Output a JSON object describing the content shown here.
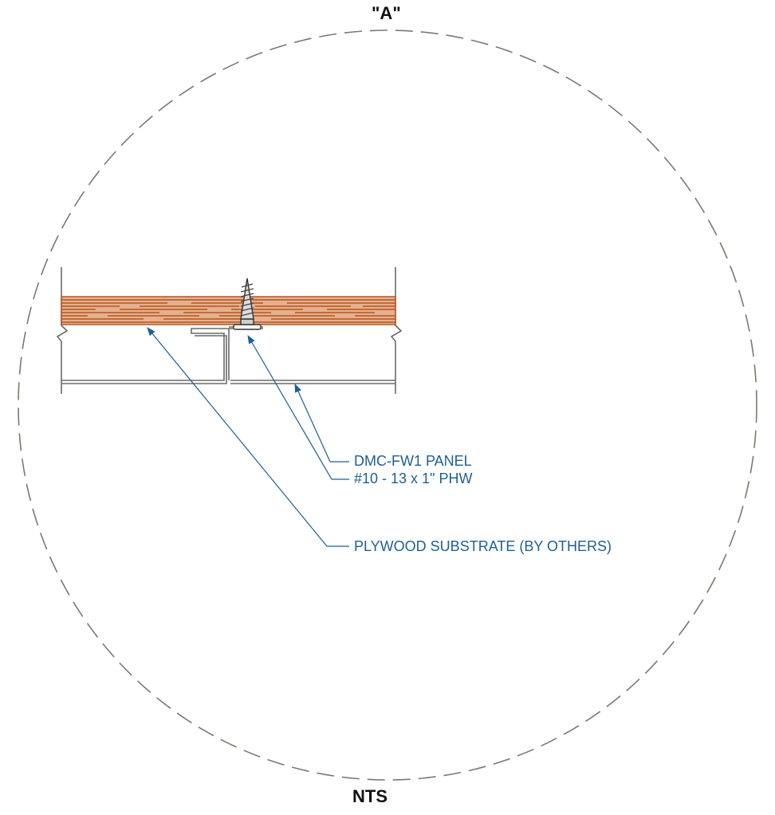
{
  "detail": {
    "title": "\"A\"",
    "scale": "NTS"
  },
  "callouts": {
    "panel": "DMC-FW1 PANEL",
    "screw": "#10 - 13 x 1\" PHW",
    "plywood": "PLYWOOD SUBSTRATE (BY OTHERS)"
  },
  "colors": {
    "callout": "#1f5f95",
    "wood": "#b5561f",
    "wood_light": "#e5b08f",
    "metal": "#6a6a6a",
    "circle": "#7a7a70"
  }
}
